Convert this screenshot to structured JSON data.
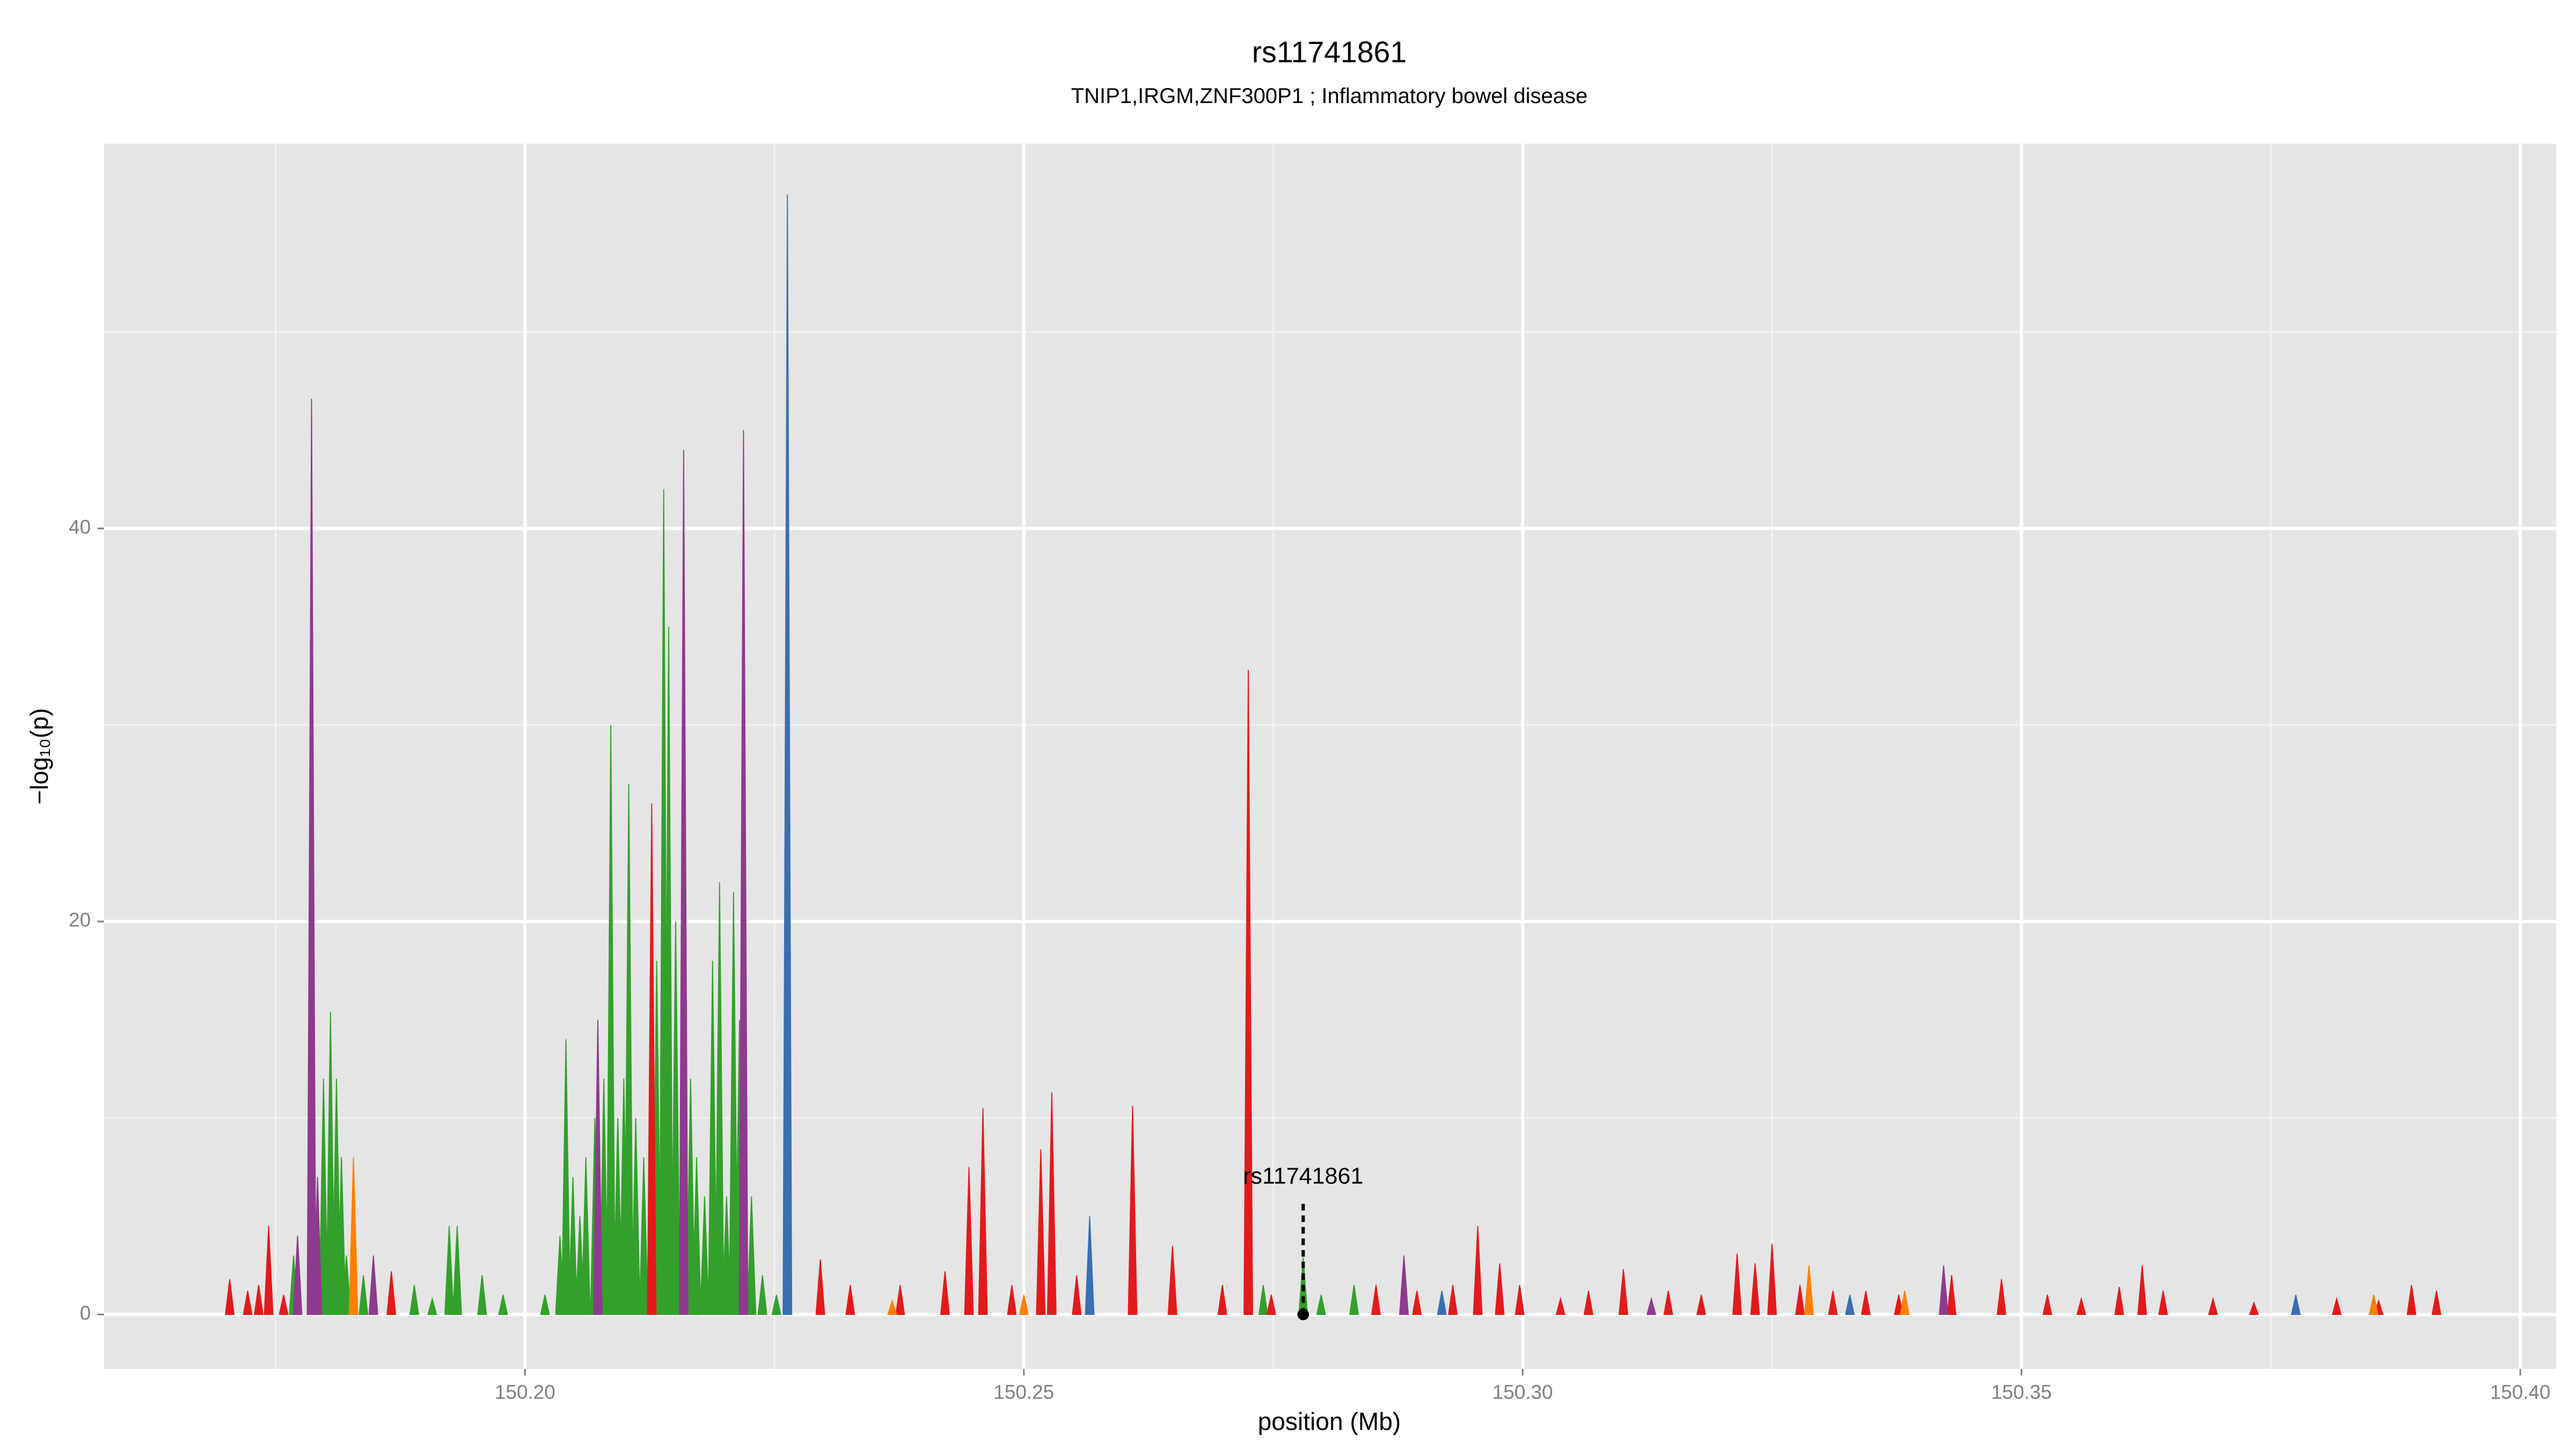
{
  "chart_data": {
    "type": "area",
    "title": "rs11741861",
    "subtitle": "TNIP1,IRGM,ZNF300P1 ; Inflammatory bowel disease",
    "xlabel": "position (Mb)",
    "ylabel": "−log₁₀(p)",
    "xlim": [
      150.1578,
      150.4036
    ],
    "ylim": [
      -2.77,
      59.58
    ],
    "xticks": [
      {
        "value": 150.2,
        "label": "150.20"
      },
      {
        "value": 150.25,
        "label": "150.25"
      },
      {
        "value": 150.3,
        "label": "150.30"
      },
      {
        "value": 150.35,
        "label": "150.35"
      },
      {
        "value": 150.4,
        "label": "150.40"
      }
    ],
    "yticks": [
      0,
      20,
      40
    ],
    "xminor": [
      150.175,
      150.225,
      150.275,
      150.325,
      150.375
    ],
    "yminor": [
      10,
      30,
      50
    ],
    "grid": true,
    "series": [
      {
        "color": "#33a02c",
        "x": [
          150.1768,
          150.1798,
          150.1805,
          150.1811,
          150.1816,
          150.1821,
          150.1838,
          150.1889,
          150.1907,
          150.1924,
          150.1932,
          150.1957,
          150.1978,
          150.202,
          150.2035,
          150.2041,
          150.2048,
          150.2055,
          150.2061,
          150.207,
          150.2079,
          150.2086,
          150.2093,
          150.2099,
          150.2104,
          150.2111,
          150.2119,
          150.2132,
          150.2139,
          150.2144,
          150.2151,
          150.2166,
          150.2172,
          150.218,
          150.2188,
          150.2195,
          150.2202,
          150.2209,
          150.2215,
          150.2227,
          150.2238,
          150.2252,
          150.274,
          150.278,
          150.2798,
          150.2831
        ],
        "values": [
          3,
          12,
          15.4,
          12,
          8,
          3,
          2,
          1.5,
          0.8,
          4.5,
          4.5,
          2,
          1,
          1,
          4,
          14,
          7,
          5,
          8,
          10,
          12,
          30,
          10,
          12,
          27,
          10,
          8,
          18,
          42,
          35,
          20,
          12,
          8,
          6,
          18,
          22,
          6,
          21.5,
          15,
          6,
          2,
          1,
          1.5,
          2.9,
          1,
          1.5
        ]
      },
      {
        "color": "#e31a1c",
        "x": [
          150.1704,
          150.1722,
          150.1733,
          150.1743,
          150.1758,
          150.1866,
          150.2127,
          150.2296,
          150.2326,
          150.2376,
          150.2421,
          150.2445,
          150.2459,
          150.2488,
          150.2517,
          150.2528,
          150.2553,
          150.2609,
          150.2649,
          150.2699,
          150.2725,
          150.2748,
          150.2853,
          150.2894,
          150.293,
          150.2955,
          150.2977,
          150.2997,
          150.3038,
          150.3066,
          150.3101,
          150.3146,
          150.3179,
          150.3215,
          150.3233,
          150.325,
          150.3278,
          150.3311,
          150.3344,
          150.3377,
          150.343,
          150.348,
          150.3526,
          150.356,
          150.3598,
          150.3621,
          150.3642,
          150.3692,
          150.3733,
          150.3775,
          150.3816,
          150.3858,
          150.3891,
          150.3916
        ],
        "values": [
          1.8,
          1.2,
          1.5,
          4.5,
          1,
          2.2,
          26,
          2.8,
          1.5,
          1.5,
          2.2,
          7.5,
          10.5,
          1.5,
          8.4,
          11.3,
          2,
          10.6,
          3.5,
          1.5,
          32.8,
          1,
          1.5,
          1.2,
          1.5,
          4.5,
          2.6,
          1.5,
          0.8,
          1.2,
          2.3,
          1.2,
          1,
          3.1,
          2.6,
          3.6,
          1.5,
          1.2,
          1.2,
          1,
          2,
          1.8,
          1,
          0.8,
          1.4,
          2.5,
          1.2,
          0.8,
          0.6,
          0.8,
          0.8,
          0.7,
          1.5,
          1.2
        ]
      },
      {
        "color": "#ff7f00",
        "x": [
          150.1828,
          150.2368,
          150.25,
          150.3287,
          150.3383,
          150.3853
        ],
        "values": [
          8,
          0.7,
          1,
          2.5,
          1.2,
          1
        ]
      },
      {
        "color": "#8e3a8e",
        "x": [
          150.1772,
          150.1786,
          150.1792,
          150.1848,
          150.2073,
          150.2159,
          150.2219,
          150.2881,
          150.3129,
          150.3422
        ],
        "values": [
          4,
          46.6,
          7,
          3,
          15,
          44,
          45,
          3,
          0.8,
          2.5
        ]
      },
      {
        "color": "#3a6fb0",
        "x": [
          150.2263,
          150.2566,
          150.2919,
          150.3328,
          150.3775
        ],
        "values": [
          57,
          5,
          1.2,
          1,
          1
        ]
      }
    ],
    "annotation": {
      "label": "rs11741861",
      "x": 150.278,
      "y": 0
    }
  }
}
